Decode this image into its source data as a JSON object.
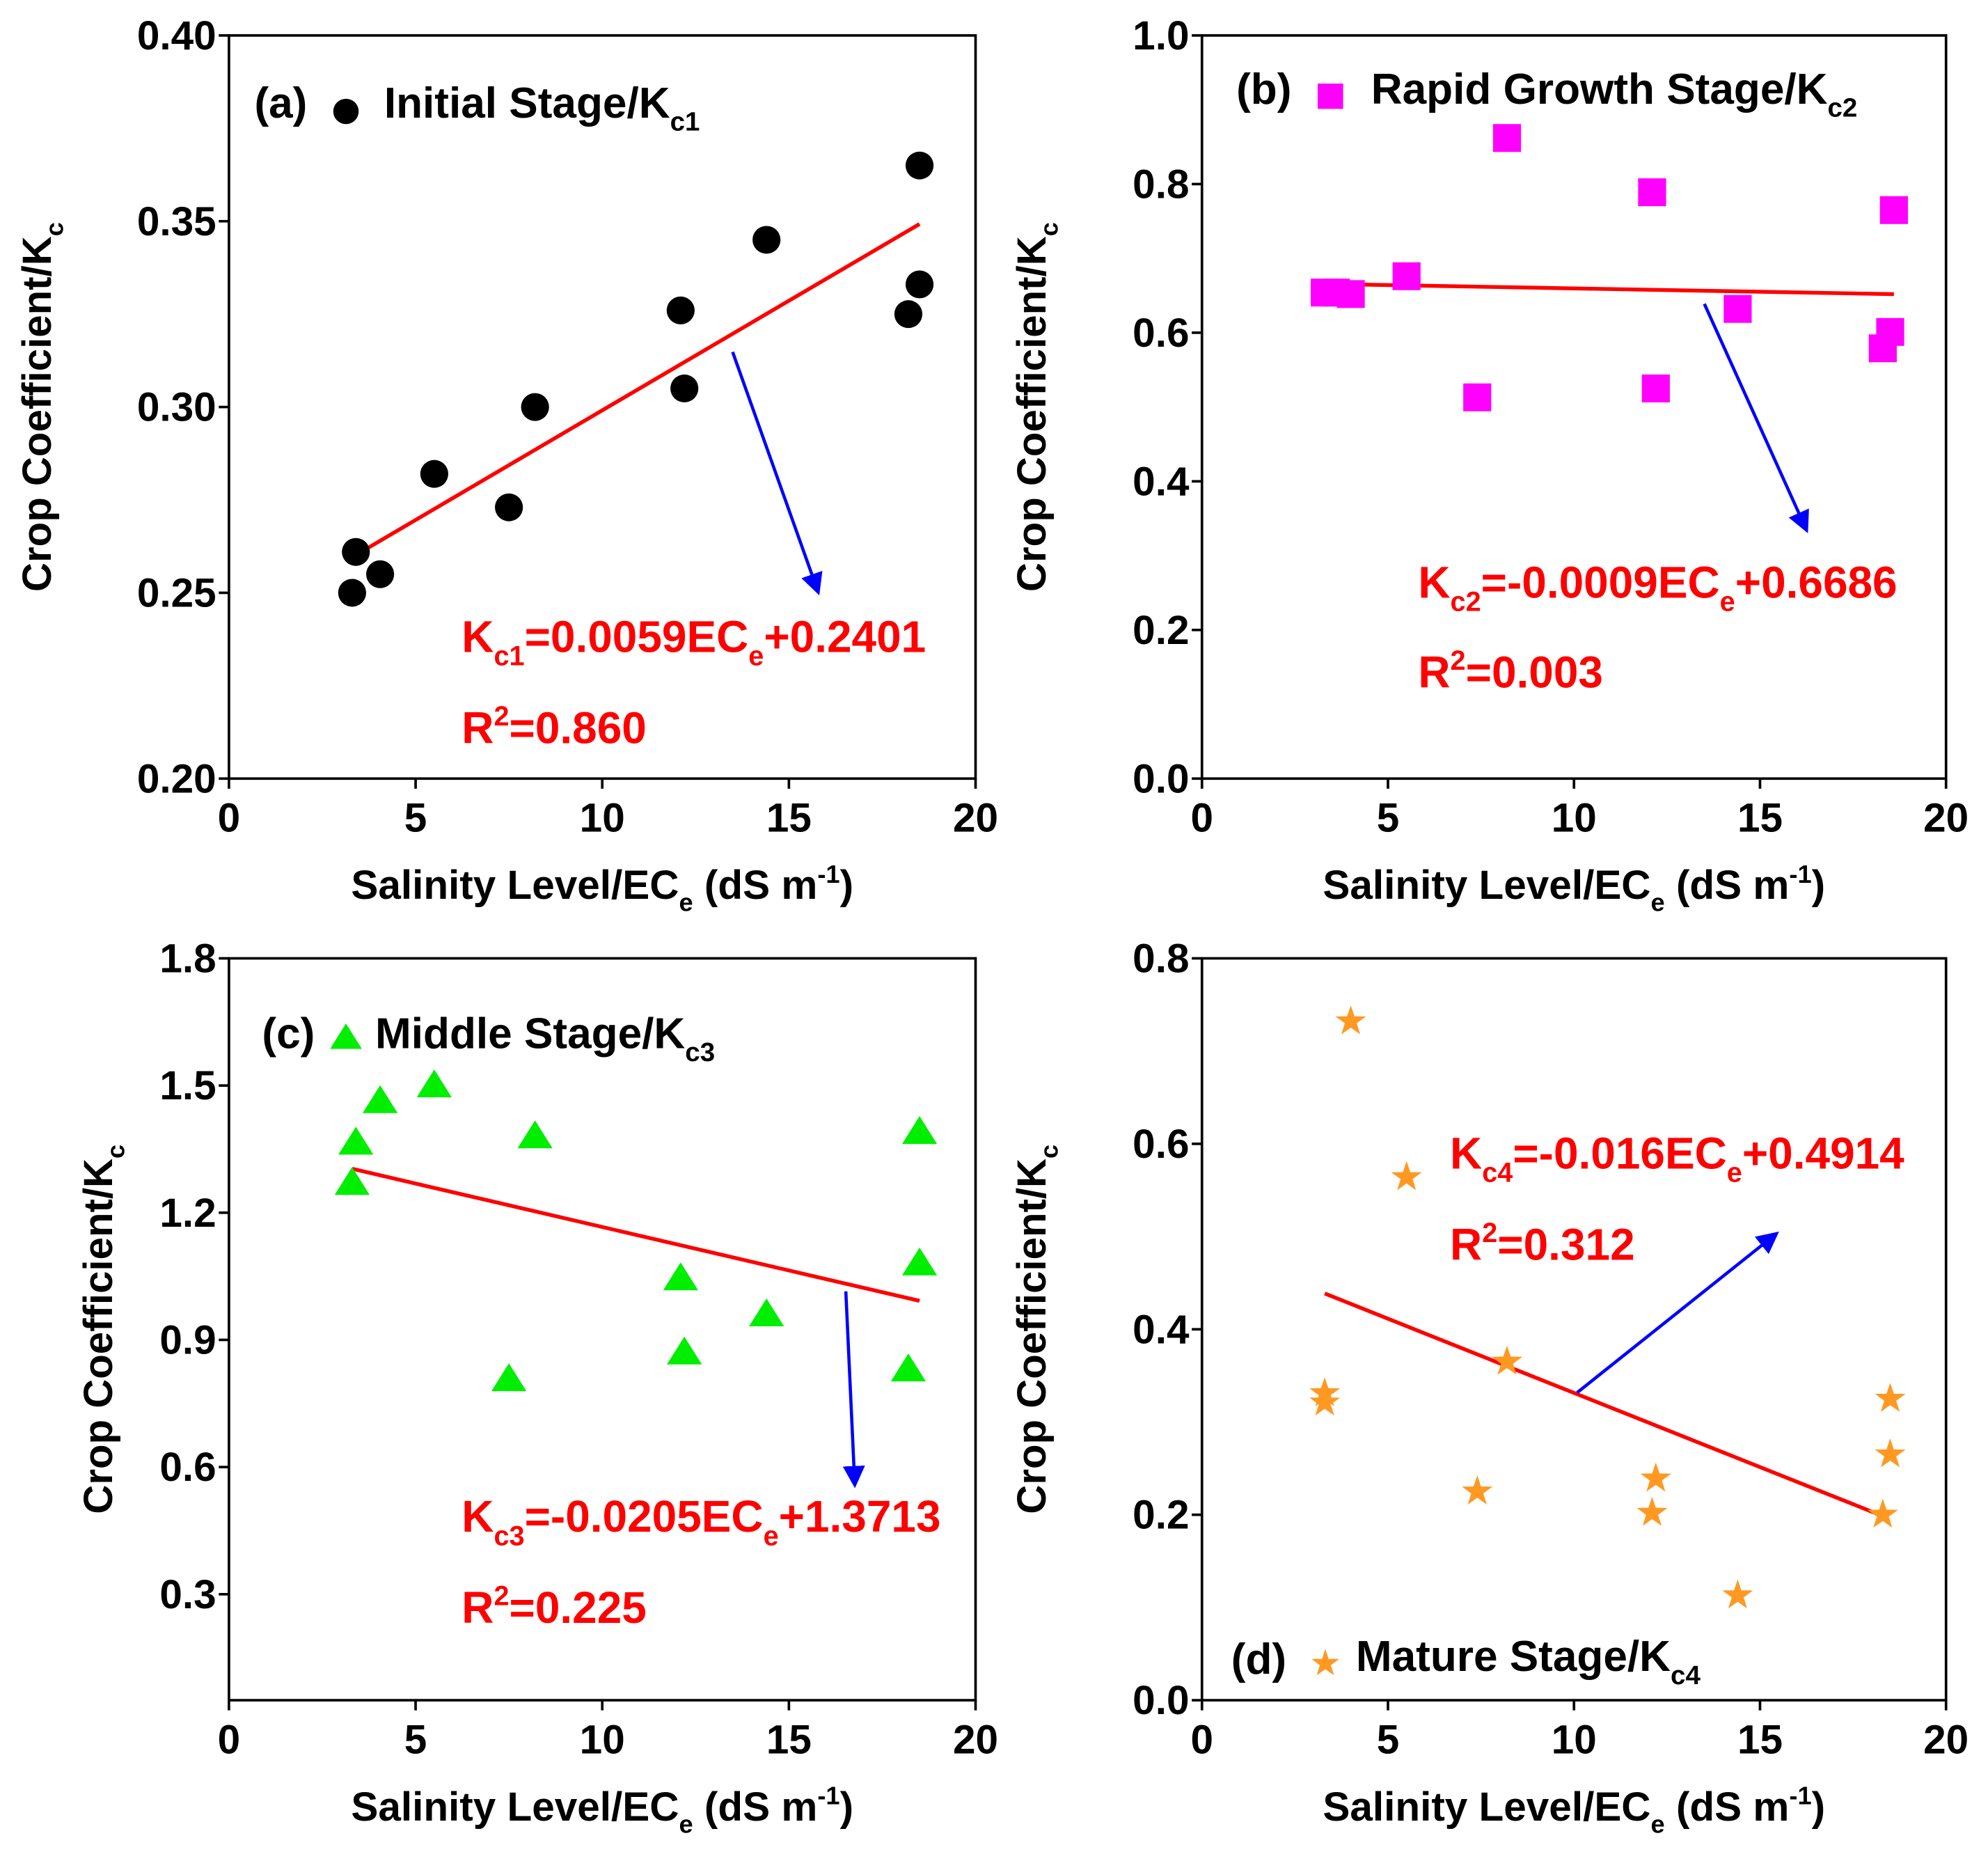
{
  "colors": {
    "fit_line": "#ff0000",
    "arrow": "#0000ff",
    "annotation": "#ff0000"
  },
  "chart_data": [
    {
      "type": "scatter",
      "panel_label": "(a)",
      "legend": {
        "text": "Initial Stage/K",
        "sub": "c1",
        "placement": "top-left"
      },
      "marker": "circle",
      "color": "#000000",
      "xlabel": {
        "text": "Salinity Level/EC",
        "sub": "e",
        "unit_pre": " (dS m",
        "sup": "-1",
        "unit_post": ")"
      },
      "ylabel": {
        "text": "Crop Coefficient/K",
        "sub": "c"
      },
      "xlim": [
        0,
        20
      ],
      "ylim": [
        0.2,
        0.4
      ],
      "xticks": [
        "0",
        "5",
        "10",
        "15",
        "20"
      ],
      "yticks": [
        "0.20",
        "0.25",
        "0.30",
        "0.35",
        "0.40"
      ],
      "x": [
        3.3,
        3.4,
        4.05,
        5.5,
        7.5,
        8.2,
        12.1,
        12.2,
        14.4,
        18.2,
        18.5,
        18.5
      ],
      "y": [
        0.25,
        0.261,
        0.255,
        0.282,
        0.273,
        0.3,
        0.326,
        0.305,
        0.345,
        0.325,
        0.333,
        0.365
      ],
      "fit": {
        "slope": 0.0059,
        "intercept": 0.2401,
        "x_range": [
          3.3,
          18.5
        ]
      },
      "equation": {
        "lhs": "K",
        "lhs_sub": "c1",
        "mid": "=0.0059EC",
        "mid_sub": "e",
        "rhs": "+0.2401"
      },
      "r2": {
        "r": "R",
        "sup": "2",
        "value": "=0.860"
      }
    },
    {
      "type": "scatter",
      "panel_label": "(b)",
      "legend": {
        "text": "Rapid Growth Stage/K",
        "sub": "c2",
        "placement": "top-left"
      },
      "marker": "square",
      "color": "#ff00ff",
      "xlabel": {
        "text": "Salinity Level/EC",
        "sub": "e",
        "unit_pre": " (dS m",
        "sup": "-1",
        "unit_post": ")"
      },
      "ylabel": {
        "text": "Crop Coefficient/K",
        "sub": "c"
      },
      "xlim": [
        0,
        20
      ],
      "ylim": [
        0.0,
        1.0
      ],
      "xticks": [
        "0",
        "5",
        "10",
        "15",
        "20"
      ],
      "yticks": [
        "0.0",
        "0.2",
        "0.4",
        "0.6",
        "0.8",
        "1.0"
      ],
      "x": [
        3.3,
        3.6,
        4.0,
        5.5,
        7.4,
        8.2,
        12.1,
        12.2,
        14.4,
        18.3,
        18.5,
        18.6
      ],
      "y": [
        0.654,
        0.654,
        0.652,
        0.676,
        0.513,
        0.862,
        0.789,
        0.525,
        0.632,
        0.579,
        0.601,
        0.765
      ],
      "fit": {
        "slope": -0.0009,
        "intercept": 0.6686,
        "x_range": [
          3.3,
          18.6
        ]
      },
      "equation": {
        "lhs": "K",
        "lhs_sub": "c2",
        "mid": "=-0.0009EC",
        "mid_sub": "e",
        "rhs": "+0.6686"
      },
      "r2": {
        "r": "R",
        "sup": "2",
        "value": "=0.003"
      }
    },
    {
      "type": "scatter",
      "panel_label": "(c)",
      "legend": {
        "text": "Middle Stage/K",
        "sub": "c3",
        "placement": "top-left"
      },
      "marker": "triangle",
      "color": "#00ee00",
      "xlabel": {
        "text": "Salinity Level/EC",
        "sub": "e",
        "unit_pre": " (dS m",
        "sup": "-1",
        "unit_post": ")"
      },
      "ylabel": {
        "text": "Crop Coefficient/K",
        "sub": "c"
      },
      "xlim": [
        0,
        20
      ],
      "ylim": [
        0.05,
        1.8
      ],
      "xticks": [
        "0",
        "5",
        "10",
        "15",
        "20"
      ],
      "yticks": [
        "0.3",
        "0.6",
        "0.9",
        "1.2",
        "1.5",
        "1.8"
      ],
      "x": [
        3.3,
        3.4,
        4.05,
        5.5,
        7.5,
        8.2,
        12.1,
        12.2,
        14.4,
        18.2,
        18.5,
        18.5
      ],
      "y": [
        1.27,
        1.365,
        1.463,
        1.5,
        0.807,
        1.38,
        1.045,
        0.87,
        0.96,
        0.83,
        1.08,
        1.39
      ],
      "fit": {
        "slope": -0.0205,
        "intercept": 1.3713,
        "x_range": [
          3.3,
          18.5
        ]
      },
      "equation": {
        "lhs": "K",
        "lhs_sub": "c3",
        "mid": "=-0.0205EC",
        "mid_sub": "e",
        "rhs": "+1.3713"
      },
      "r2": {
        "r": "R",
        "sup": "2",
        "value": "=0.225"
      }
    },
    {
      "type": "scatter",
      "panel_label": "(d)",
      "legend": {
        "text": "Mature Stage/K",
        "sub": "c4",
        "placement": "bottom-left"
      },
      "marker": "star",
      "color": "#ff9922",
      "xlabel": {
        "text": "Salinity Level/EC",
        "sub": "e",
        "unit_pre": " (dS m",
        "sup": "-1",
        "unit_post": ")"
      },
      "ylabel": {
        "text": "Crop Coefficient/K",
        "sub": "c"
      },
      "xlim": [
        0,
        20
      ],
      "ylim": [
        0.0,
        0.8
      ],
      "xticks": [
        "0",
        "5",
        "10",
        "15",
        "20"
      ],
      "yticks": [
        "0.0",
        "0.2",
        "0.4",
        "0.6",
        "0.8"
      ],
      "x": [
        3.3,
        3.3,
        4.0,
        5.5,
        7.4,
        8.2,
        12.1,
        12.2,
        14.4,
        18.3,
        18.5,
        18.5
      ],
      "y": [
        0.321,
        0.331,
        0.732,
        0.564,
        0.225,
        0.365,
        0.202,
        0.239,
        0.113,
        0.2,
        0.265,
        0.325
      ],
      "fit": {
        "slope": -0.016,
        "intercept": 0.4914,
        "x_range": [
          3.3,
          18.3
        ]
      },
      "equation": {
        "lhs": "K",
        "lhs_sub": "c4",
        "mid": "=-0.016EC",
        "mid_sub": "e",
        "rhs": "+0.4914"
      },
      "r2": {
        "r": "R",
        "sup": "2",
        "value": "=0.312"
      }
    }
  ]
}
